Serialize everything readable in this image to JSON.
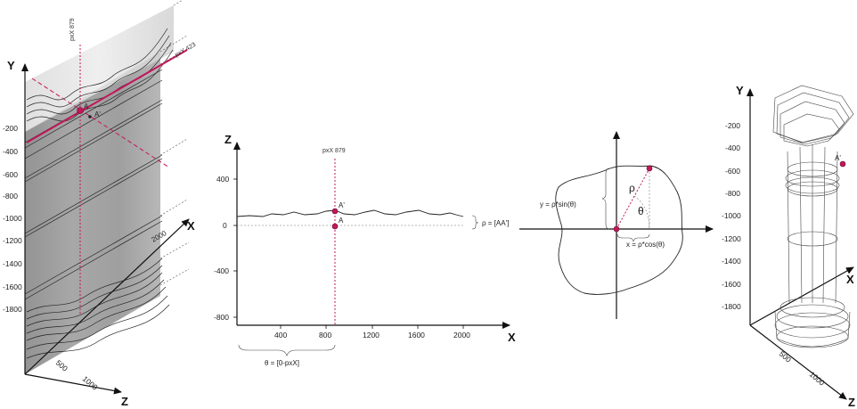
{
  "panel1": {
    "axis_y": "Y",
    "axis_x": "X",
    "axis_z": "Z",
    "y_ticks": [
      "-200",
      "-400",
      "-600",
      "-800",
      "-1000",
      "-1200",
      "-1400",
      "-1600",
      "-1800"
    ],
    "z_ticks": [
      "500",
      "1000"
    ],
    "label_pxx": "pxX 879",
    "label_pxy": "pxY 423",
    "point_a": "A",
    "point_a_prime": "A'",
    "corner_label": "2000"
  },
  "panel2": {
    "axis_z": "Z",
    "axis_x": "X",
    "y_ticks": [
      "400",
      "0",
      "-400",
      "-800"
    ],
    "x_ticks": [
      "400",
      "800",
      "1200",
      "1600",
      "2000"
    ],
    "label_pxx": "pxX 879",
    "point_a": "A",
    "point_a_prime": "A'",
    "rho_label": "ρ = [AA']",
    "theta_label": "θ = [0-pxX]"
  },
  "panel3": {
    "rho": "ρ",
    "theta": "θ",
    "y_formula": "y = ρ*sin(θ)",
    "x_formula": "x = ρ*cos(θ)"
  },
  "panel4": {
    "axis_y": "Y",
    "axis_x": "X",
    "axis_z": "Z",
    "y_ticks": [
      "-200",
      "-400",
      "-600",
      "-800",
      "-1000",
      "-1200",
      "-1400",
      "-1600",
      "-1800"
    ],
    "z_ticks": [
      "500",
      "1000"
    ],
    "point_a_prime": "A'"
  },
  "colors": {
    "accent": "#c2185b",
    "axis": "#111111",
    "surface": "#9a9a9a"
  }
}
